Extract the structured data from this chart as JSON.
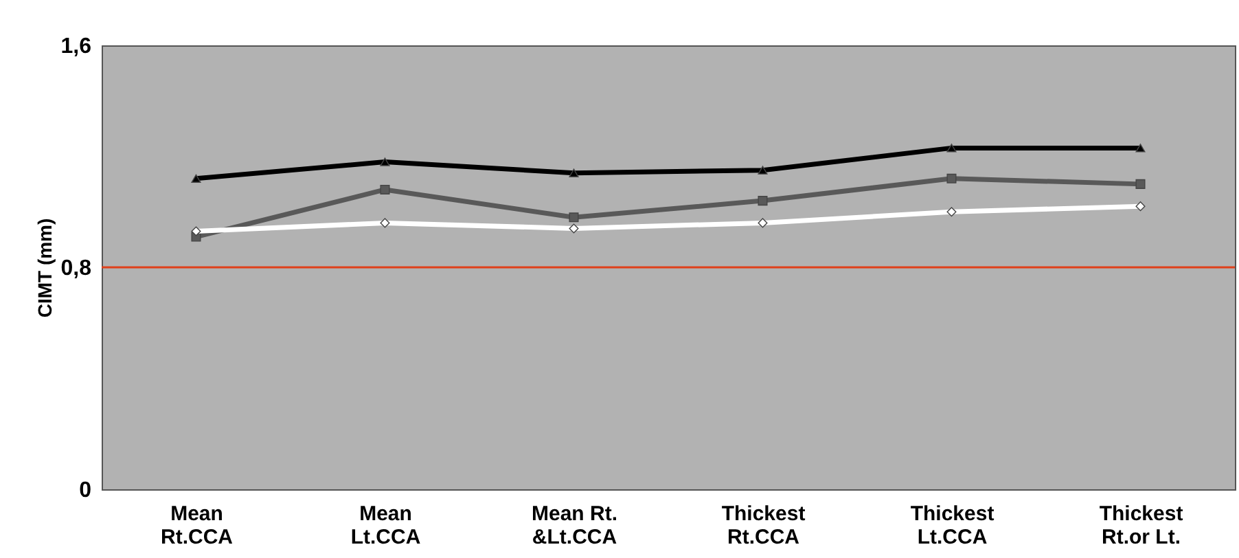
{
  "chart_data": {
    "type": "line",
    "ylabel": "CIMT  (mm)",
    "categories": [
      "Mean\nRt.CCA",
      "Mean\nLt.CCA",
      "Mean Rt.\n&Lt.CCA",
      "Thickest\nRt.CCA",
      "Thickest\nLt.CCA",
      "Thickest\nRt.or Lt."
    ],
    "series": [
      {
        "color": "#000000",
        "marker": "triangle",
        "values": [
          1.12,
          1.18,
          1.14,
          1.15,
          1.23,
          1.23
        ]
      },
      {
        "color": "#595959",
        "marker": "square",
        "values": [
          0.91,
          1.08,
          0.98,
          1.04,
          1.12,
          1.1
        ]
      },
      {
        "color": "#ffffff",
        "marker": "diamond",
        "values": [
          0.93,
          0.96,
          0.94,
          0.96,
          1.0,
          1.02
        ]
      }
    ],
    "ylim": [
      0,
      1.6
    ],
    "yticks": [
      {
        "value": 0,
        "label": "0"
      },
      {
        "value": 0.8,
        "label": "0,8"
      },
      {
        "value": 1.6,
        "label": "1,6"
      }
    ],
    "ref_lines": [
      {
        "axis": "y",
        "value": 0.8,
        "color": "#e0401a"
      }
    ]
  }
}
